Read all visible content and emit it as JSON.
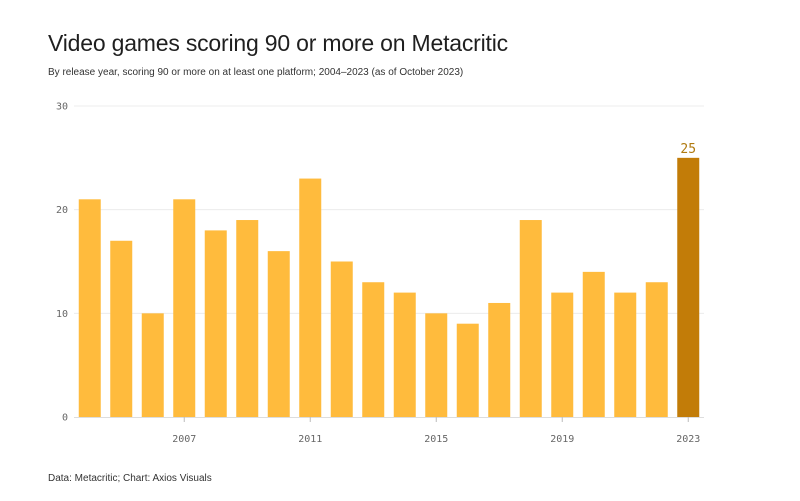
{
  "header": {
    "title": "Video games scoring 90 or more on Metacritic",
    "subtitle": "By release year, scoring 90 or more on at least one platform; 2004–2023 (as of October 2023)"
  },
  "footer": {
    "source": "Data: Metacritic; Chart: Axios Visuals"
  },
  "colors": {
    "bar": "#ffbb3d",
    "highlight": "#c27c08",
    "highlight_label": "#b07a10",
    "grid": "#ececec",
    "axis": "#dddddd"
  },
  "chart_data": {
    "type": "bar",
    "title": "Video games scoring 90 or more on Metacritic",
    "xlabel": "",
    "ylabel": "",
    "categories": [
      "2004",
      "2005",
      "2006",
      "2007",
      "2008",
      "2009",
      "2010",
      "2011",
      "2012",
      "2013",
      "2014",
      "2015",
      "2016",
      "2017",
      "2018",
      "2019",
      "2020",
      "2021",
      "2022",
      "2023"
    ],
    "values": [
      21,
      17,
      10,
      21,
      18,
      19,
      16,
      23,
      15,
      13,
      12,
      10,
      9,
      11,
      19,
      12,
      14,
      12,
      13,
      25
    ],
    "ylim": [
      0,
      30
    ],
    "yticks": [
      "0",
      "10",
      "20",
      "30"
    ],
    "xticks": [
      "2007",
      "2011",
      "2015",
      "2019",
      "2023"
    ],
    "highlight_category": "2023",
    "highlight_label": "25",
    "grid": true
  }
}
